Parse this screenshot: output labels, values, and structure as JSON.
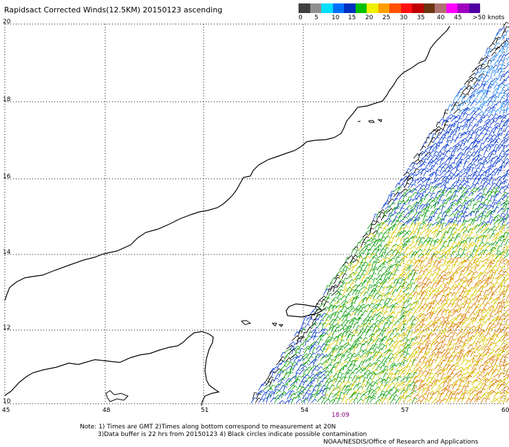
{
  "title": "Rapidsact Corrected Winds(12.5KM) 20150123 ascending",
  "legend": {
    "colors": [
      "#404040",
      "#909090",
      "#00e0ff",
      "#0070ff",
      "#0030c0",
      "#00c000",
      "#f0f000",
      "#ffa000",
      "#ff5000",
      "#ff1010",
      "#c00000",
      "#6b3510",
      "#b07070",
      "#ff00ff",
      "#a000c0",
      "#5000a0"
    ],
    "labels": [
      "0",
      "5",
      "10",
      "15",
      "20",
      "25",
      "30",
      "35",
      "40",
      "45",
      ">50 knots"
    ]
  },
  "axes": {
    "x_labels": [
      "45",
      "48",
      "51",
      "54",
      "57",
      "60"
    ],
    "y_labels": [
      "20",
      "18",
      "16",
      "14",
      "12",
      "10"
    ]
  },
  "pass_time": "18:09",
  "notes": {
    "line1": "Note: 1) Times are GMT 2)Times along bottom correspond to measurement at 20N",
    "line2": "3)Data buffer is 22 hrs from 20150123 4) Black circles indicate possible contamination",
    "line3": "NOAA/NESDIS/Office of Research and Applications"
  },
  "wind_color_bands": {
    "blue": "#1040d0",
    "light_blue": "#2a8cf0",
    "green": "#10a010",
    "yellow": "#d8c800",
    "orange": "#d87800",
    "black": "#000000"
  }
}
